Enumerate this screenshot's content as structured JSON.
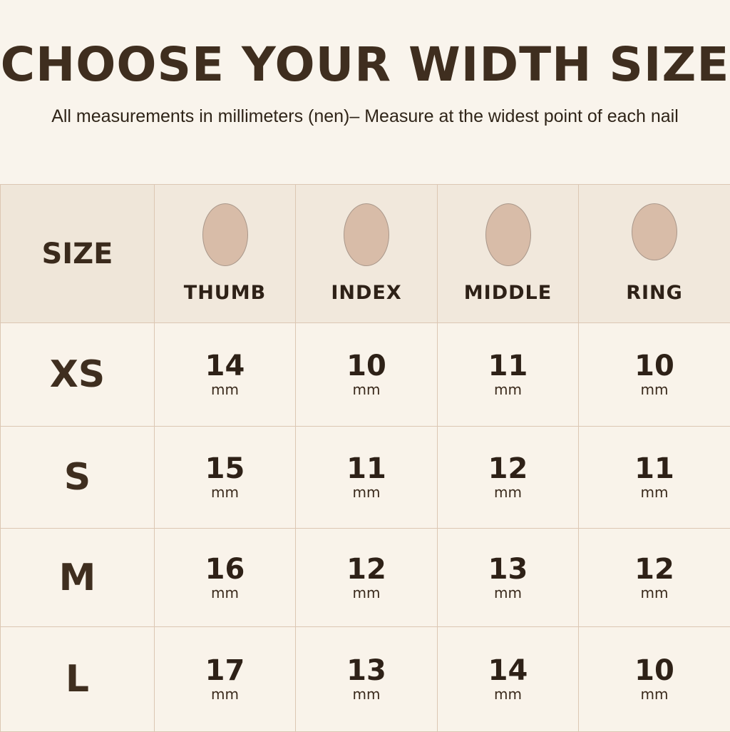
{
  "title": "CHOOSE YOUR WIDTH SIZE",
  "subtitle": "All measurements in millimeters (nen)– Measure at the widest point of each nail",
  "table": {
    "size_header": "SIZE",
    "fingers": [
      {
        "label": "THUMB",
        "icon": "nail-icon"
      },
      {
        "label": "INDEX",
        "icon": "nail-icon"
      },
      {
        "label": "MIDDLE",
        "icon": "nail-icon"
      },
      {
        "label": "RING",
        "icon": "nail-icon"
      }
    ],
    "unit": "mm",
    "rows": [
      {
        "size": "XS",
        "values": [
          "14",
          "10",
          "11",
          "10"
        ]
      },
      {
        "size": "S",
        "values": [
          "15",
          "11",
          "12",
          "11"
        ]
      },
      {
        "size": "M",
        "values": [
          "16",
          "12",
          "13",
          "12"
        ]
      },
      {
        "size": "L",
        "values": [
          "17",
          "13",
          "14",
          "10"
        ]
      }
    ]
  },
  "colors": {
    "background": "#f9f4ec",
    "header_bg": "#f1e8dc",
    "nail": "#d8bca8",
    "text": "#3a2a1c"
  }
}
